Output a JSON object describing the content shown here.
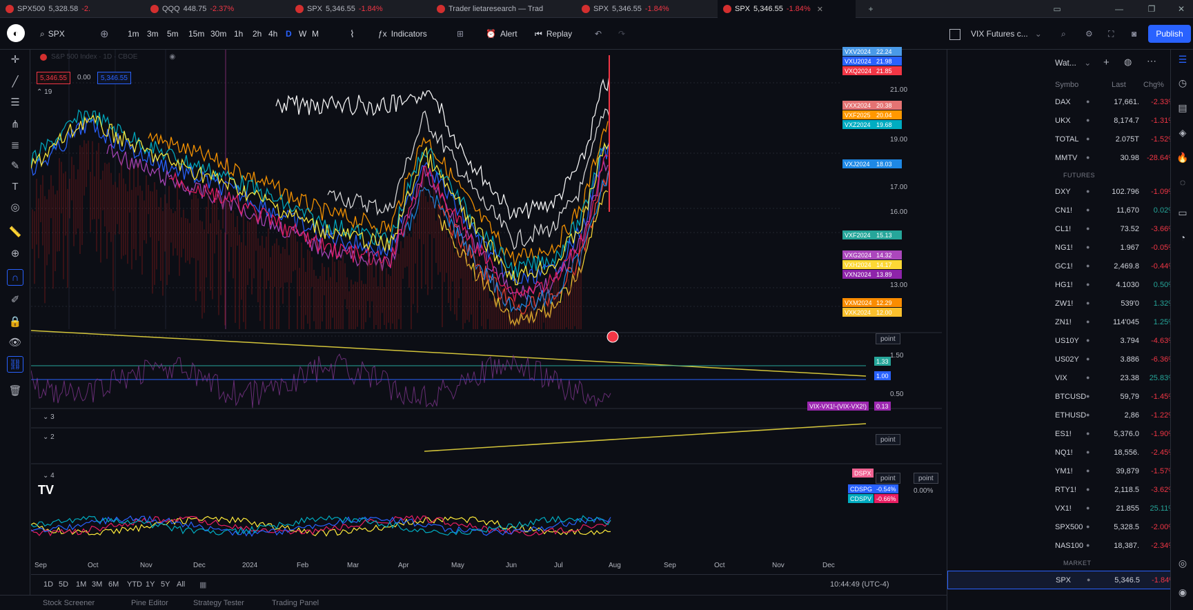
{
  "tabs": [
    {
      "label": "SPX500",
      "price": "5,328.58",
      "change": "-2.",
      "active": false
    },
    {
      "label": "QQQ",
      "price": "448.75",
      "change": "-2.37%",
      "active": false
    },
    {
      "label": "SPX",
      "price": "5,346.55",
      "change": "-1.84%",
      "active": false
    },
    {
      "label": "Trader lietaresearch — Trad",
      "price": "",
      "change": "",
      "active": false
    },
    {
      "label": "SPX",
      "price": "5,346.55",
      "change": "-1.84%",
      "active": false
    },
    {
      "label": "SPX",
      "price": "5,346.55",
      "change": "-1.84%",
      "active": true
    }
  ],
  "toolbar": {
    "symbol": "SPX",
    "intervals": [
      "1m",
      "3m",
      "5m",
      "15m",
      "30m",
      "1h",
      "2h",
      "4h",
      "D",
      "W",
      "M"
    ],
    "active_interval": "D",
    "indicators": "Indicators",
    "alert": "Alert",
    "replay": "Replay",
    "watch_symbol": "VIX Futures c...",
    "publish": "Publish"
  },
  "legend": {
    "title": "S&P 500 Index · 1D · CBOE",
    "price_red": "5,346.55",
    "spread": "0.00",
    "price_blue": "5,346.55",
    "count": "19"
  },
  "price_axis": [
    "21.00",
    "19.00",
    "17.00",
    "16.00",
    "13.00"
  ],
  "contract_labels": [
    {
      "name": "VXV2024",
      "value": "22.24",
      "color": "#4a9ae8"
    },
    {
      "name": "VXU2024",
      "value": "21.98",
      "color": "#2962ff"
    },
    {
      "name": "VXQ2024",
      "value": "21.85",
      "color": "#f23645"
    },
    {
      "name": "VXX2024",
      "value": "20.38",
      "color": "#e57373"
    },
    {
      "name": "VXF2025",
      "value": "20.04",
      "color": "#ff9800"
    },
    {
      "name": "VXZ2024",
      "value": "19.68",
      "color": "#00acc1"
    },
    {
      "name": "VXJ2024",
      "value": "18.03",
      "color": "#1e88e5"
    },
    {
      "name": "VXF2024",
      "value": "15.13",
      "color": "#26a69a"
    },
    {
      "name": "VXG2024",
      "value": "14.32",
      "color": "#ab47bc"
    },
    {
      "name": "VXH2024",
      "value": "14.17",
      "color": "#fdd835"
    },
    {
      "name": "VXN2024",
      "value": "13.89",
      "color": "#8e24aa"
    },
    {
      "name": "VXM2024",
      "value": "12.29",
      "color": "#fb8c00"
    },
    {
      "name": "VXK2024",
      "value": "12.00",
      "color": "#fbc02d"
    }
  ],
  "pane2": {
    "point": "point",
    "v150": "1.50",
    "v133": "1.33",
    "v100": "1.00",
    "v050": "0.50",
    "ratio_label": "VIX-VX1!-(VIX-VX2!)",
    "ratio_value": "0.13",
    "pane_a": "3",
    "pane_b": "2",
    "pane_c": "4"
  },
  "pane4": {
    "dspx": "DSPX",
    "cdspg": "CDSPG",
    "cdspg_v": "-0.54%",
    "cdspv": "CDSPV",
    "cdspv_v": "-0.66%",
    "zero": "0.00%",
    "point": "point"
  },
  "time_axis": [
    "Sep",
    "Oct",
    "Nov",
    "Dec",
    "2024",
    "Feb",
    "Mar",
    "Apr",
    "May",
    "Jun",
    "Jul",
    "Aug",
    "Sep",
    "Oct",
    "Nov",
    "Dec"
  ],
  "ranges": [
    "1D",
    "5D",
    "1M",
    "3M",
    "6M",
    "YTD",
    "1Y",
    "5Y",
    "All"
  ],
  "clock": "10:44:49 (UTC-4)",
  "bottom_tabs": [
    "Stock Screener",
    "Pine Editor",
    "Strategy Tester",
    "Trading Panel"
  ],
  "watchlist": {
    "title": "Wat...",
    "cols": {
      "symbol": "Symbo",
      "last": "Last",
      "chg": "Chg%"
    },
    "rows": [
      {
        "s": "DAX",
        "l": "17,661.",
        "c": "-2.33%",
        "up": false
      },
      {
        "s": "UKX",
        "l": "8,174.7",
        "c": "-1.31%",
        "up": false
      },
      {
        "s": "TOTAL",
        "l": "2.075T",
        "c": "-1.52%",
        "up": false
      },
      {
        "s": "MMTV",
        "l": "30.98",
        "c": "-28.64%",
        "up": false
      },
      {
        "hdr": "FUTURES"
      },
      {
        "s": "DXY",
        "l": "102.796",
        "c": "-1.09%",
        "up": false
      },
      {
        "s": "CN1!",
        "l": "11,670",
        "c": "0.02%",
        "up": true
      },
      {
        "s": "CL1!",
        "l": "73.52",
        "c": "-3.66%",
        "up": false
      },
      {
        "s": "NG1!",
        "l": "1.967",
        "c": "-0.05%",
        "up": false
      },
      {
        "s": "GC1!",
        "l": "2,469.8",
        "c": "-0.44%",
        "up": false
      },
      {
        "s": "HG1!",
        "l": "4.1030",
        "c": "0.50%",
        "up": true
      },
      {
        "s": "ZW1!",
        "l": "539'0",
        "c": "1.32%",
        "up": true
      },
      {
        "s": "ZN1!",
        "l": "114'045",
        "c": "1.25%",
        "up": true
      },
      {
        "s": "US10Y",
        "l": "3.794",
        "c": "-4.63%",
        "up": false
      },
      {
        "s": "US02Y",
        "l": "3.886",
        "c": "-6.36%",
        "up": false
      },
      {
        "s": "VIX",
        "l": "23.38",
        "c": "25.83%",
        "up": true
      },
      {
        "s": "BTCUSD",
        "l": "59,79",
        "c": "-1.45%",
        "up": false
      },
      {
        "s": "ETHUSD",
        "l": "2,86",
        "c": "-1.22%",
        "up": false
      },
      {
        "s": "ES1!",
        "l": "5,376.0",
        "c": "-1.90%",
        "up": false
      },
      {
        "s": "NQ1!",
        "l": "18,556.",
        "c": "-2.45%",
        "up": false
      },
      {
        "s": "YM1!",
        "l": "39,879",
        "c": "-1.57%",
        "up": false
      },
      {
        "s": "RTY1!",
        "l": "2,118.5",
        "c": "-3.62%",
        "up": false
      },
      {
        "s": "VX1!",
        "l": "21.855",
        "c": "25.11%",
        "up": true
      },
      {
        "s": "SPX500",
        "l": "5,328.5",
        "c": "-2.00%",
        "up": false
      },
      {
        "s": "NAS100",
        "l": "18,387.",
        "c": "-2.34%",
        "up": false
      },
      {
        "hdr": "MARKET"
      },
      {
        "s": "SPX",
        "l": "5,346.5",
        "c": "-1.84%",
        "up": false,
        "sel": true
      }
    ]
  },
  "colors": {
    "up": "#26a69a",
    "down": "#f23645",
    "accent": "#2962ff"
  }
}
